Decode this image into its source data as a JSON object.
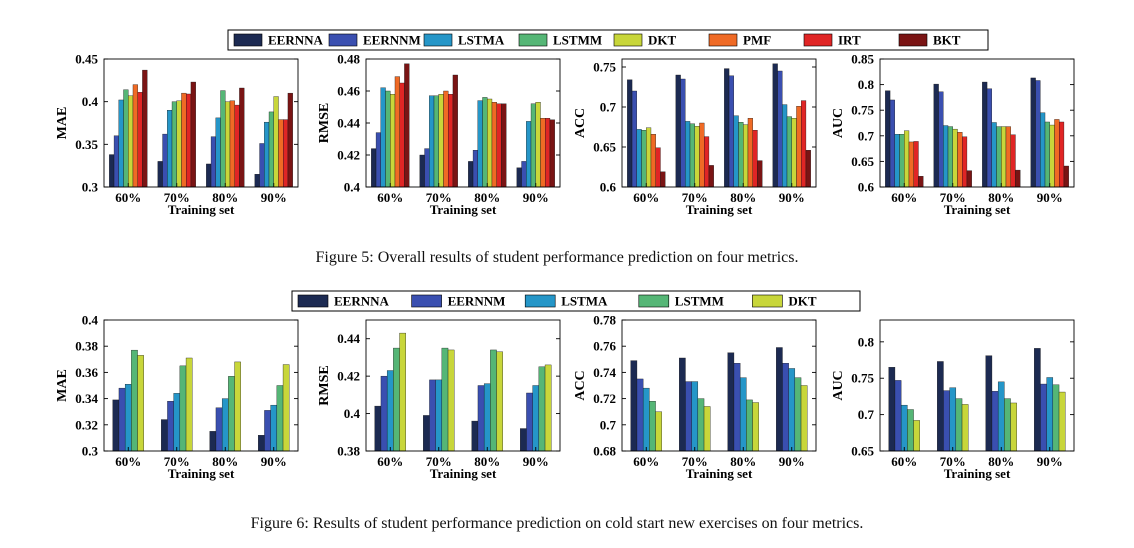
{
  "figures": [
    {
      "caption": "Figure 5: Overall results of student performance prediction on four metrics.",
      "legend": [
        "EERNNA",
        "EERNNM",
        "LSTMA",
        "LSTMM",
        "DKT",
        "PMF",
        "IRT",
        "BKT"
      ]
    },
    {
      "caption": "Figure 6: Results of student performance prediction on cold start new exercises on four metrics.",
      "legend": [
        "EERNNA",
        "EERNNM",
        "LSTMA",
        "LSTMM",
        "DKT"
      ]
    }
  ],
  "colors": [
    "#1c2a52",
    "#3a4fb0",
    "#2596c8",
    "#55b676",
    "#c8d63a",
    "#ef6a25",
    "#e02525",
    "#7a1414"
  ],
  "chart_data": [
    {
      "type": "bar",
      "figure": 0,
      "ylabel": "MAE",
      "xlabel": "Training set",
      "categories": [
        "60%",
        "70%",
        "80%",
        "90%"
      ],
      "ylim": [
        0.3,
        0.45
      ],
      "yticks": [
        0.3,
        0.35,
        0.4,
        0.45
      ],
      "ytick_labels": [
        "0.3",
        "0.35",
        "0.4",
        "0.45"
      ],
      "series": [
        {
          "name": "EERNNA",
          "values": [
            0.338,
            0.33,
            0.327,
            0.315
          ]
        },
        {
          "name": "EERNNM",
          "values": [
            0.36,
            0.362,
            0.359,
            0.351
          ]
        },
        {
          "name": "LSTMA",
          "values": [
            0.402,
            0.39,
            0.381,
            0.376
          ]
        },
        {
          "name": "LSTMM",
          "values": [
            0.414,
            0.4,
            0.413,
            0.388
          ]
        },
        {
          "name": "DKT",
          "values": [
            0.407,
            0.401,
            0.4,
            0.406
          ]
        },
        {
          "name": "PMF",
          "values": [
            0.42,
            0.41,
            0.401,
            0.379
          ]
        },
        {
          "name": "IRT",
          "values": [
            0.411,
            0.409,
            0.396,
            0.379
          ]
        },
        {
          "name": "BKT",
          "values": [
            0.437,
            0.423,
            0.416,
            0.41
          ]
        }
      ]
    },
    {
      "type": "bar",
      "figure": 0,
      "ylabel": "RMSE",
      "xlabel": "Training set",
      "categories": [
        "60%",
        "70%",
        "80%",
        "90%"
      ],
      "ylim": [
        0.4,
        0.48
      ],
      "yticks": [
        0.4,
        0.42,
        0.44,
        0.46,
        0.48
      ],
      "ytick_labels": [
        "0.4",
        "0.42",
        "0.44",
        "0.46",
        "0.48"
      ],
      "series": [
        {
          "name": "EERNNA",
          "values": [
            0.424,
            0.42,
            0.416,
            0.412
          ]
        },
        {
          "name": "EERNNM",
          "values": [
            0.434,
            0.424,
            0.423,
            0.416
          ]
        },
        {
          "name": "LSTMA",
          "values": [
            0.462,
            0.457,
            0.454,
            0.441
          ]
        },
        {
          "name": "LSTMM",
          "values": [
            0.46,
            0.457,
            0.456,
            0.452
          ]
        },
        {
          "name": "DKT",
          "values": [
            0.458,
            0.458,
            0.455,
            0.453
          ]
        },
        {
          "name": "PMF",
          "values": [
            0.469,
            0.46,
            0.453,
            0.443
          ]
        },
        {
          "name": "IRT",
          "values": [
            0.465,
            0.458,
            0.452,
            0.443
          ]
        },
        {
          "name": "BKT",
          "values": [
            0.477,
            0.47,
            0.452,
            0.442
          ]
        }
      ]
    },
    {
      "type": "bar",
      "figure": 0,
      "ylabel": "ACC",
      "xlabel": "Training set",
      "categories": [
        "60%",
        "70%",
        "80%",
        "90%"
      ],
      "ylim": [
        0.6,
        0.76
      ],
      "yticks": [
        0.6,
        0.65,
        0.7,
        0.75
      ],
      "ytick_labels": [
        "0.6",
        "0.65",
        "0.7",
        "0.75"
      ],
      "series": [
        {
          "name": "EERNNA",
          "values": [
            0.734,
            0.74,
            0.748,
            0.754
          ]
        },
        {
          "name": "EERNNM",
          "values": [
            0.72,
            0.735,
            0.739,
            0.745
          ]
        },
        {
          "name": "LSTMA",
          "values": [
            0.672,
            0.682,
            0.689,
            0.703
          ]
        },
        {
          "name": "LSTMM",
          "values": [
            0.671,
            0.679,
            0.681,
            0.688
          ]
        },
        {
          "name": "DKT",
          "values": [
            0.674,
            0.676,
            0.678,
            0.686
          ]
        },
        {
          "name": "PMF",
          "values": [
            0.666,
            0.68,
            0.686,
            0.701
          ]
        },
        {
          "name": "IRT",
          "values": [
            0.649,
            0.663,
            0.671,
            0.708
          ]
        },
        {
          "name": "BKT",
          "values": [
            0.619,
            0.627,
            0.633,
            0.646
          ]
        }
      ]
    },
    {
      "type": "bar",
      "figure": 0,
      "ylabel": "AUC",
      "xlabel": "Training set",
      "categories": [
        "60%",
        "70%",
        "80%",
        "90%"
      ],
      "ylim": [
        0.6,
        0.85
      ],
      "yticks": [
        0.6,
        0.65,
        0.7,
        0.75,
        0.8,
        0.85
      ],
      "ytick_labels": [
        "0.6",
        "0.65",
        "0.7",
        "0.75",
        "0.8",
        "0.85"
      ],
      "series": [
        {
          "name": "EERNNA",
          "values": [
            0.788,
            0.801,
            0.805,
            0.813
          ]
        },
        {
          "name": "EERNNM",
          "values": [
            0.77,
            0.786,
            0.792,
            0.808
          ]
        },
        {
          "name": "LSTMA",
          "values": [
            0.703,
            0.72,
            0.726,
            0.745
          ]
        },
        {
          "name": "LSTMM",
          "values": [
            0.703,
            0.718,
            0.718,
            0.727
          ]
        },
        {
          "name": "DKT",
          "values": [
            0.71,
            0.713,
            0.718,
            0.721
          ]
        },
        {
          "name": "PMF",
          "values": [
            0.688,
            0.707,
            0.718,
            0.732
          ]
        },
        {
          "name": "IRT",
          "values": [
            0.689,
            0.698,
            0.702,
            0.727
          ]
        },
        {
          "name": "BKT",
          "values": [
            0.621,
            0.632,
            0.633,
            0.641
          ]
        }
      ]
    },
    {
      "type": "bar",
      "figure": 1,
      "ylabel": "MAE",
      "xlabel": "Training set",
      "categories": [
        "60%",
        "70%",
        "80%",
        "90%"
      ],
      "ylim": [
        0.3,
        0.4
      ],
      "yticks": [
        0.3,
        0.32,
        0.34,
        0.36,
        0.38,
        0.4
      ],
      "ytick_labels": [
        "0.3",
        "0.32",
        "0.34",
        "0.36",
        "0.38",
        "0.4"
      ],
      "series": [
        {
          "name": "EERNNA",
          "values": [
            0.339,
            0.324,
            0.315,
            0.312
          ]
        },
        {
          "name": "EERNNM",
          "values": [
            0.348,
            0.338,
            0.333,
            0.331
          ]
        },
        {
          "name": "LSTMA",
          "values": [
            0.351,
            0.344,
            0.34,
            0.335
          ]
        },
        {
          "name": "LSTMM",
          "values": [
            0.377,
            0.365,
            0.357,
            0.35
          ]
        },
        {
          "name": "DKT",
          "values": [
            0.373,
            0.371,
            0.368,
            0.366
          ]
        }
      ]
    },
    {
      "type": "bar",
      "figure": 1,
      "ylabel": "RMSE",
      "xlabel": "Training set",
      "categories": [
        "60%",
        "70%",
        "80%",
        "90%"
      ],
      "ylim": [
        0.38,
        0.45
      ],
      "yticks": [
        0.38,
        0.4,
        0.42,
        0.44
      ],
      "ytick_labels": [
        "0.38",
        "0.4",
        "0.42",
        "0.44"
      ],
      "series": [
        {
          "name": "EERNNA",
          "values": [
            0.404,
            0.399,
            0.396,
            0.392
          ]
        },
        {
          "name": "EERNNM",
          "values": [
            0.42,
            0.418,
            0.415,
            0.411
          ]
        },
        {
          "name": "LSTMA",
          "values": [
            0.423,
            0.418,
            0.416,
            0.415
          ]
        },
        {
          "name": "LSTMM",
          "values": [
            0.435,
            0.435,
            0.434,
            0.425
          ]
        },
        {
          "name": "DKT",
          "values": [
            0.443,
            0.434,
            0.433,
            0.426
          ]
        }
      ]
    },
    {
      "type": "bar",
      "figure": 1,
      "ylabel": "ACC",
      "xlabel": "Training set",
      "categories": [
        "60%",
        "70%",
        "80%",
        "90%"
      ],
      "ylim": [
        0.68,
        0.78
      ],
      "yticks": [
        0.68,
        0.7,
        0.72,
        0.74,
        0.76,
        0.78
      ],
      "ytick_labels": [
        "0.68",
        "0.7",
        "0.72",
        "0.74",
        "0.76",
        "0.78"
      ],
      "series": [
        {
          "name": "EERNNA",
          "values": [
            0.749,
            0.751,
            0.755,
            0.759
          ]
        },
        {
          "name": "EERNNM",
          "values": [
            0.735,
            0.733,
            0.747,
            0.747
          ]
        },
        {
          "name": "LSTMA",
          "values": [
            0.728,
            0.733,
            0.736,
            0.743
          ]
        },
        {
          "name": "LSTMM",
          "values": [
            0.718,
            0.72,
            0.719,
            0.736
          ]
        },
        {
          "name": "DKT",
          "values": [
            0.71,
            0.714,
            0.717,
            0.73
          ]
        }
      ]
    },
    {
      "type": "bar",
      "figure": 1,
      "ylabel": "AUC",
      "xlabel": "Training set",
      "categories": [
        "60%",
        "70%",
        "80%",
        "90%"
      ],
      "ylim": [
        0.65,
        0.83
      ],
      "yticks": [
        0.65,
        0.7,
        0.75,
        0.8
      ],
      "ytick_labels": [
        "0.65",
        "0.7",
        "0.75",
        "0.8"
      ],
      "series": [
        {
          "name": "EERNNA",
          "values": [
            0.765,
            0.773,
            0.781,
            0.791
          ]
        },
        {
          "name": "EERNNM",
          "values": [
            0.747,
            0.733,
            0.732,
            0.742
          ]
        },
        {
          "name": "LSTMA",
          "values": [
            0.713,
            0.737,
            0.745,
            0.751
          ]
        },
        {
          "name": "LSTMM",
          "values": [
            0.707,
            0.722,
            0.722,
            0.741
          ]
        },
        {
          "name": "DKT",
          "values": [
            0.692,
            0.714,
            0.716,
            0.731
          ]
        }
      ]
    }
  ]
}
